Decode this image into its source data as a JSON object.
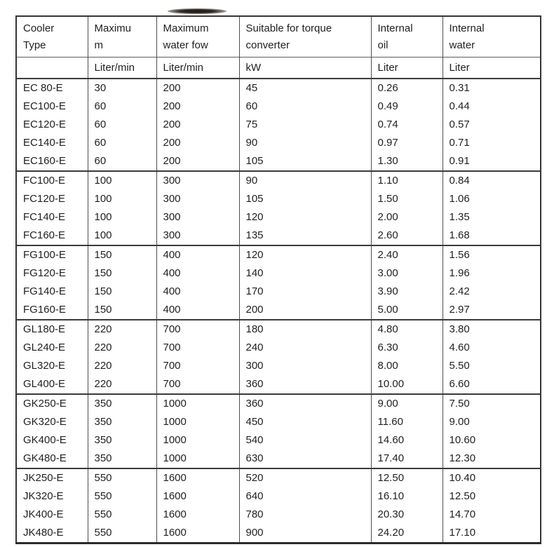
{
  "artifact": {
    "description": "dark horizontal scan smudge near top center"
  },
  "table": {
    "columns": [
      {
        "title": "Cooler\nType",
        "unit": ""
      },
      {
        "title": "Maximu\nm",
        "unit": "Liter/min"
      },
      {
        "title": "Maximum\nwater fow",
        "unit": "Liter/min"
      },
      {
        "title": "Suitable for torque\nconverter",
        "unit": "kW"
      },
      {
        "title": "Internal\noil",
        "unit": "Liter"
      },
      {
        "title": "Internal\nwater",
        "unit": "Liter"
      }
    ],
    "groups": [
      {
        "rows": [
          [
            "EC 80-E",
            "30",
            "200",
            "45",
            "0.26",
            "0.31"
          ],
          [
            "EC100-E",
            "60",
            "200",
            "60",
            "0.49",
            "0.44"
          ],
          [
            "EC120-E",
            "60",
            "200",
            "75",
            "0.74",
            "0.57"
          ],
          [
            "EC140-E",
            "60",
            "200",
            "90",
            "0.97",
            "0.71"
          ],
          [
            "EC160-E",
            "60",
            "200",
            "105",
            "1.30",
            "0.91"
          ]
        ]
      },
      {
        "rows": [
          [
            "FC100-E",
            "100",
            "300",
            "90",
            "1.10",
            "0.84"
          ],
          [
            "FC120-E",
            "100",
            "300",
            "105",
            "1.50",
            "1.06"
          ],
          [
            "FC140-E",
            "100",
            "300",
            "120",
            "2.00",
            "1.35"
          ],
          [
            "FC160-E",
            "100",
            "300",
            "135",
            "2.60",
            "1.68"
          ]
        ]
      },
      {
        "rows": [
          [
            "FG100-E",
            "150",
            "400",
            "120",
            "2.40",
            "1.56"
          ],
          [
            "FG120-E",
            "150",
            "400",
            "140",
            "3.00",
            "1.96"
          ],
          [
            "FG140-E",
            "150",
            "400",
            "170",
            "3.90",
            "2.42"
          ],
          [
            "FG160-E",
            "150",
            "400",
            "200",
            "5.00",
            "2.97"
          ]
        ]
      },
      {
        "rows": [
          [
            "GL180-E",
            "220",
            "700",
            "180",
            "4.80",
            "3.80"
          ],
          [
            "GL240-E",
            "220",
            "700",
            "240",
            "6.30",
            "4.60"
          ],
          [
            "GL320-E",
            "220",
            "700",
            "300",
            "8.00",
            "5.50"
          ],
          [
            "GL400-E",
            "220",
            "700",
            "360",
            "10.00",
            "6.60"
          ]
        ]
      },
      {
        "rows": [
          [
            "GK250-E",
            "350",
            "1000",
            "360",
            "9.00",
            "7.50"
          ],
          [
            "GK320-E",
            "350",
            "1000",
            "450",
            "11.60",
            "9.00"
          ],
          [
            "GK400-E",
            "350",
            "1000",
            "540",
            "14.60",
            "10.60"
          ],
          [
            "GK480-E",
            "350",
            "1000",
            "630",
            "17.40",
            "12.30"
          ]
        ]
      },
      {
        "rows": [
          [
            "JK250-E",
            "550",
            "1600",
            "520",
            "12.50",
            "10.40"
          ],
          [
            "JK320-E",
            "550",
            "1600",
            "640",
            "16.10",
            "12.50"
          ],
          [
            "JK400-E",
            "550",
            "1600",
            "780",
            "20.30",
            "14.70"
          ],
          [
            "JK480-E",
            "550",
            "1600",
            "900",
            "24.20",
            "17.10"
          ]
        ]
      }
    ]
  }
}
